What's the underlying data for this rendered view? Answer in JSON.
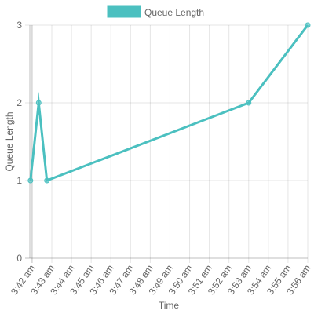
{
  "chart_data": {
    "type": "line",
    "title": "",
    "xlabel": "Time",
    "ylabel": "Queue Length",
    "x_ticks": [
      "3:42 am",
      "3:43 am",
      "3:44 am",
      "3:45 am",
      "3:46 am",
      "3:47 am",
      "3:48 am",
      "3:49 am",
      "3:50 am",
      "3:51 am",
      "3:52 am",
      "3:53 am",
      "3:54 am",
      "3:55 am",
      "3:56 am"
    ],
    "y_ticks": [
      "0",
      "1",
      "2",
      "3"
    ],
    "ylim": [
      0,
      3
    ],
    "grid": true,
    "legend_position": "top-center",
    "series": [
      {
        "name": "Queue Length",
        "color": "#4BC0C0",
        "points": [
          {
            "x": "3:41:55 am",
            "y": 1
          },
          {
            "x": "3:42:20 am",
            "y": 2
          },
          {
            "x": "3:42:45 am",
            "y": 1
          },
          {
            "x": "3:53 am",
            "y": 2
          },
          {
            "x": "3:56 am",
            "y": 3
          }
        ]
      }
    ]
  }
}
